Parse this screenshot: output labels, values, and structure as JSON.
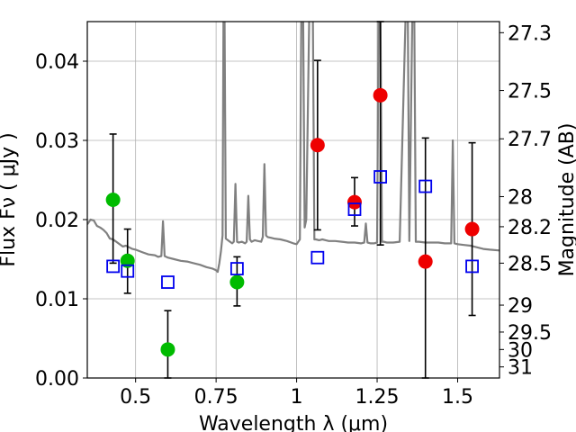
{
  "chart_data": {
    "type": "scatter",
    "title": "",
    "xlabel": "Wavelength  λ (μm)",
    "ylabel": "Flux  Fν  ( μJy )",
    "ylabel_right": "Magnitude (AB)",
    "xlim": [
      0.35,
      1.63
    ],
    "ylim": [
      0.0,
      0.045
    ],
    "grid": true,
    "x_ticks": [
      {
        "value": 0.5,
        "label": "0.5"
      },
      {
        "value": 0.75,
        "label": "0.75"
      },
      {
        "value": 1.0,
        "label": "1"
      },
      {
        "value": 1.25,
        "label": "1.25"
      },
      {
        "value": 1.5,
        "label": "1.5"
      }
    ],
    "y_ticks": [
      {
        "value": 0.0,
        "label": "0.00"
      },
      {
        "value": 0.01,
        "label": "0.01"
      },
      {
        "value": 0.02,
        "label": "0.02"
      },
      {
        "value": 0.03,
        "label": "0.03"
      },
      {
        "value": 0.04,
        "label": "0.04"
      }
    ],
    "right_ticks": [
      {
        "flux": 0.0436,
        "label": "27.3"
      },
      {
        "flux": 0.0363,
        "label": "27.5"
      },
      {
        "flux": 0.0302,
        "label": "27.7"
      },
      {
        "flux": 0.0229,
        "label": "28"
      },
      {
        "flux": 0.0191,
        "label": "28.2"
      },
      {
        "flux": 0.0145,
        "label": "28.5"
      },
      {
        "flux": 0.0092,
        "label": "29"
      },
      {
        "flux": 0.0058,
        "label": "29.5"
      },
      {
        "flux": 0.0036,
        "label": "30"
      },
      {
        "flux": 0.0014,
        "label": "31"
      }
    ],
    "colors": {
      "model": "#808080",
      "green": "#00bb00",
      "red": "#ee0000",
      "blue": "#0000ee",
      "error": "#000000"
    },
    "model_spectrum": [
      [
        0.35,
        0.0194
      ],
      [
        0.36,
        0.02
      ],
      [
        0.37,
        0.0199
      ],
      [
        0.38,
        0.0192
      ],
      [
        0.39,
        0.019
      ],
      [
        0.4,
        0.0187
      ],
      [
        0.41,
        0.0183
      ],
      [
        0.42,
        0.0176
      ],
      [
        0.43,
        0.0175
      ],
      [
        0.44,
        0.0172
      ],
      [
        0.45,
        0.0169
      ],
      [
        0.46,
        0.0166
      ],
      [
        0.47,
        0.0167
      ],
      [
        0.48,
        0.0165
      ],
      [
        0.49,
        0.0163
      ],
      [
        0.5,
        0.0162
      ],
      [
        0.52,
        0.0159
      ],
      [
        0.54,
        0.0156
      ],
      [
        0.56,
        0.0155
      ],
      [
        0.57,
        0.0153
      ],
      [
        0.58,
        0.0154
      ],
      [
        0.585,
        0.0198
      ],
      [
        0.59,
        0.0154
      ],
      [
        0.6,
        0.0152
      ],
      [
        0.62,
        0.015
      ],
      [
        0.64,
        0.0148
      ],
      [
        0.66,
        0.0147
      ],
      [
        0.68,
        0.0145
      ],
      [
        0.7,
        0.0143
      ],
      [
        0.72,
        0.014
      ],
      [
        0.74,
        0.0138
      ],
      [
        0.75,
        0.0136
      ],
      [
        0.755,
        0.0134
      ],
      [
        0.76,
        0.0145
      ],
      [
        0.765,
        0.016
      ],
      [
        0.77,
        0.018
      ],
      [
        0.773,
        0.048
      ],
      [
        0.776,
        0.048
      ],
      [
        0.78,
        0.0176
      ],
      [
        0.79,
        0.0173
      ],
      [
        0.8,
        0.017
      ],
      [
        0.805,
        0.0172
      ],
      [
        0.81,
        0.0245
      ],
      [
        0.815,
        0.0172
      ],
      [
        0.82,
        0.0171
      ],
      [
        0.83,
        0.0172
      ],
      [
        0.84,
        0.017
      ],
      [
        0.845,
        0.0172
      ],
      [
        0.85,
        0.023
      ],
      [
        0.855,
        0.0175
      ],
      [
        0.86,
        0.0172
      ],
      [
        0.87,
        0.0174
      ],
      [
        0.88,
        0.0173
      ],
      [
        0.89,
        0.0172
      ],
      [
        0.895,
        0.0178
      ],
      [
        0.9,
        0.027
      ],
      [
        0.905,
        0.018
      ],
      [
        0.91,
        0.0178
      ],
      [
        0.92,
        0.0177
      ],
      [
        0.93,
        0.0176
      ],
      [
        0.95,
        0.0175
      ],
      [
        0.97,
        0.0173
      ],
      [
        0.99,
        0.017
      ],
      [
        1.0,
        0.0169
      ],
      [
        1.01,
        0.0175
      ],
      [
        1.015,
        0.048
      ],
      [
        1.02,
        0.048
      ],
      [
        1.025,
        0.019
      ],
      [
        1.03,
        0.02
      ],
      [
        1.04,
        0.048
      ],
      [
        1.045,
        0.048
      ],
      [
        1.05,
        0.048
      ],
      [
        1.055,
        0.0175
      ],
      [
        1.06,
        0.0175
      ],
      [
        1.07,
        0.0174
      ],
      [
        1.08,
        0.0175
      ],
      [
        1.09,
        0.0174
      ],
      [
        1.1,
        0.0173
      ],
      [
        1.12,
        0.0173
      ],
      [
        1.14,
        0.0172
      ],
      [
        1.16,
        0.0171
      ],
      [
        1.18,
        0.0171
      ],
      [
        1.2,
        0.017
      ],
      [
        1.21,
        0.0171
      ],
      [
        1.215,
        0.0195
      ],
      [
        1.22,
        0.0171
      ],
      [
        1.23,
        0.017
      ],
      [
        1.24,
        0.017
      ],
      [
        1.25,
        0.0171
      ],
      [
        1.255,
        0.048
      ],
      [
        1.26,
        0.048
      ],
      [
        1.265,
        0.0172
      ],
      [
        1.27,
        0.0172
      ],
      [
        1.28,
        0.0171
      ],
      [
        1.3,
        0.0171
      ],
      [
        1.32,
        0.0172
      ],
      [
        1.34,
        0.048
      ],
      [
        1.345,
        0.048
      ],
      [
        1.35,
        0.0173
      ],
      [
        1.36,
        0.048
      ],
      [
        1.365,
        0.048
      ],
      [
        1.37,
        0.0172
      ],
      [
        1.38,
        0.0172
      ],
      [
        1.4,
        0.0171
      ],
      [
        1.42,
        0.0171
      ],
      [
        1.44,
        0.0171
      ],
      [
        1.46,
        0.017
      ],
      [
        1.48,
        0.017
      ],
      [
        1.485,
        0.03
      ],
      [
        1.49,
        0.017
      ],
      [
        1.5,
        0.0169
      ],
      [
        1.52,
        0.0168
      ],
      [
        1.54,
        0.0167
      ],
      [
        1.56,
        0.0165
      ],
      [
        1.58,
        0.0163
      ],
      [
        1.6,
        0.0162
      ],
      [
        1.63,
        0.0161
      ]
    ],
    "series": [
      {
        "color": "green",
        "marker": "circle",
        "points": [
          {
            "x": 0.43,
            "y": 0.0225,
            "lo": 0.0145,
            "hi": 0.0308
          },
          {
            "x": 0.475,
            "y": 0.0148,
            "lo": 0.0107,
            "hi": 0.0188
          },
          {
            "x": 0.6,
            "y": 0.0036,
            "lo": 0.0,
            "hi": 0.0085
          },
          {
            "x": 0.815,
            "y": 0.0121,
            "lo": 0.0091,
            "hi": 0.0153
          }
        ]
      },
      {
        "color": "red",
        "marker": "circle",
        "points": [
          {
            "x": 1.065,
            "y": 0.0294,
            "lo": 0.0187,
            "hi": 0.0401
          },
          {
            "x": 1.18,
            "y": 0.0222,
            "lo": 0.0192,
            "hi": 0.0253
          },
          {
            "x": 1.26,
            "y": 0.0357,
            "lo": 0.0168,
            "hi": 0.045
          },
          {
            "x": 1.4,
            "y": 0.0147,
            "lo": 0.0,
            "hi": 0.0303
          },
          {
            "x": 1.545,
            "y": 0.0188,
            "lo": 0.0079,
            "hi": 0.0297
          }
        ]
      },
      {
        "color": "blue",
        "marker": "square",
        "points": [
          {
            "x": 0.43,
            "y": 0.0141
          },
          {
            "x": 0.475,
            "y": 0.0135
          },
          {
            "x": 0.6,
            "y": 0.0121
          },
          {
            "x": 0.815,
            "y": 0.0138
          },
          {
            "x": 1.065,
            "y": 0.0152
          },
          {
            "x": 1.18,
            "y": 0.0213
          },
          {
            "x": 1.26,
            "y": 0.0254
          },
          {
            "x": 1.4,
            "y": 0.0242
          },
          {
            "x": 1.545,
            "y": 0.0141
          }
        ]
      }
    ]
  }
}
